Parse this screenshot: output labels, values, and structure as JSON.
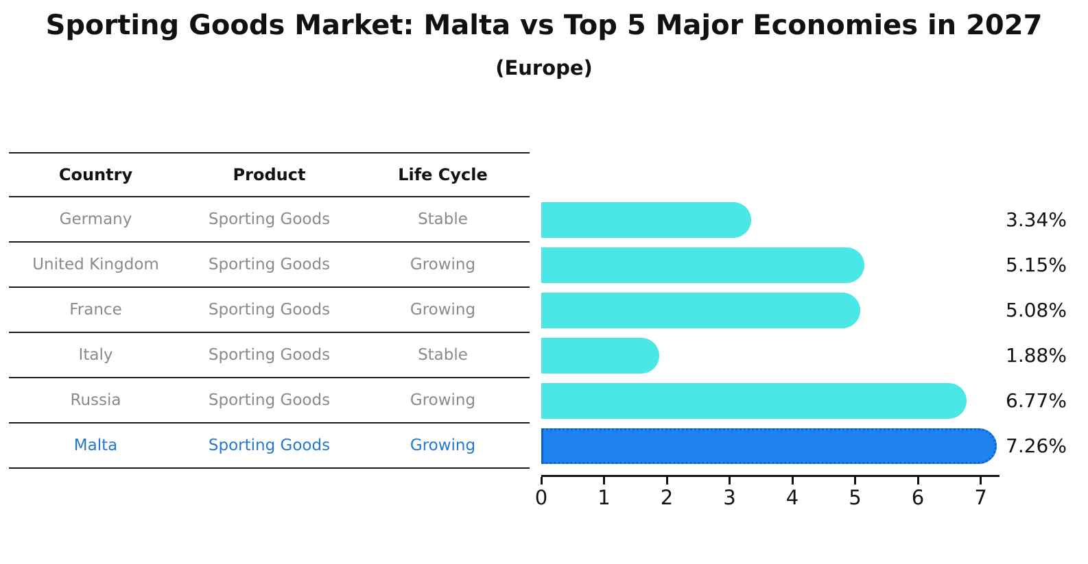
{
  "title": "Sporting Goods Market: Malta vs Top 5 Major Economies in 2027",
  "subtitle": "(Europe)",
  "table": {
    "headers": [
      "Country",
      "Product",
      "Life Cycle"
    ],
    "rows": [
      {
        "country": "Germany",
        "product": "Sporting Goods",
        "life_cycle": "Stable",
        "highlighted": false
      },
      {
        "country": "United Kingdom",
        "product": "Sporting Goods",
        "life_cycle": "Growing",
        "highlighted": false
      },
      {
        "country": "France",
        "product": "Sporting Goods",
        "life_cycle": "Growing",
        "highlighted": false
      },
      {
        "country": "Italy",
        "product": "Sporting Goods",
        "life_cycle": "Stable",
        "highlighted": false
      },
      {
        "country": "Russia",
        "product": "Sporting Goods",
        "life_cycle": "Growing",
        "highlighted": false
      },
      {
        "country": "Malta",
        "product": "Sporting Goods",
        "life_cycle": "Growing",
        "highlighted": true
      }
    ]
  },
  "chart_data": {
    "type": "bar",
    "orientation": "horizontal",
    "title": "Sporting Goods Market: Malta vs Top 5 Major Economies in 2027",
    "subtitle": "(Europe)",
    "categories": [
      "Germany",
      "United Kingdom",
      "France",
      "Italy",
      "Russia",
      "Malta"
    ],
    "values": [
      3.34,
      5.15,
      5.08,
      1.88,
      6.77,
      7.26
    ],
    "value_labels": [
      "3.34%",
      "5.15%",
      "5.08%",
      "1.88%",
      "6.77%",
      "7.26%"
    ],
    "unit": "%",
    "xlabel": "",
    "ylabel": "",
    "x_ticks": [
      0,
      1,
      2,
      3,
      4,
      5,
      6,
      7
    ],
    "xlim": [
      0,
      7.3
    ],
    "grid": false,
    "legend": false,
    "highlight_index": 5,
    "bar_color": "#4be6e6",
    "highlight_color": "#1e82f0",
    "highlight_border_color": "#1060cc",
    "highlight_text_color": "#2578cc",
    "text_color": "#111111",
    "muted_text_color": "#8a8a8a"
  }
}
